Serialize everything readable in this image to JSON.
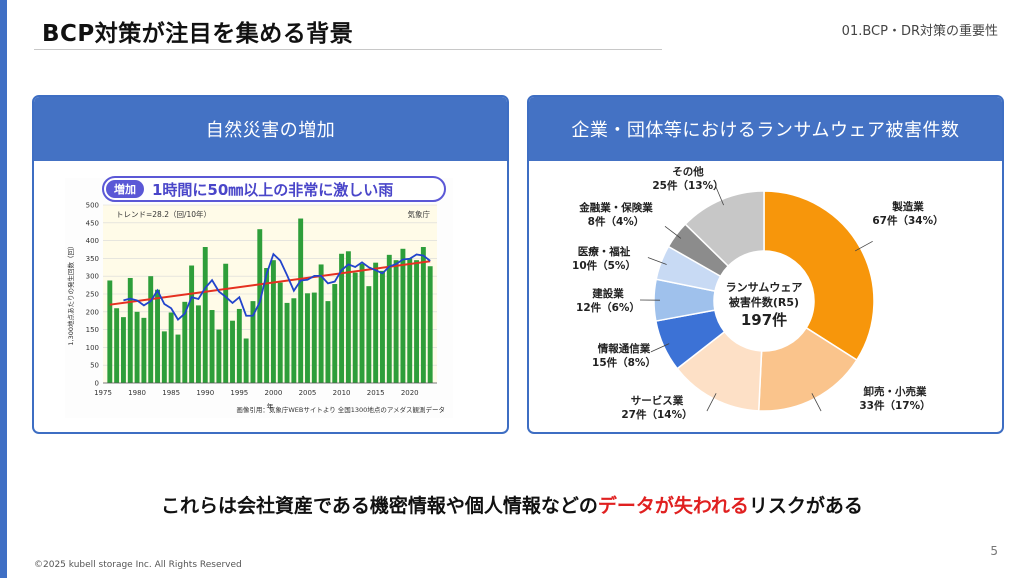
{
  "header": {
    "title": "BCP対策が注目を集める背景",
    "section": "01.BCP・DR対策の重要性"
  },
  "left_card": {
    "title": "自然災害の増加",
    "badge_tag": "増加",
    "badge_text": "1時間に50㎜以上の非常に激しい雨"
  },
  "right_card": {
    "title": "企業・団体等におけるランサムウェア被害件数",
    "center_line1": "ランサムウェア",
    "center_line2": "被害件数(R5)",
    "center_total": "197件"
  },
  "message": {
    "before": "これらは会社資産である機密情報や個人情報などの",
    "highlight": "データが失われる",
    "after": "リスクがある"
  },
  "page_number": "5",
  "footer": "©2025 kubell storage Inc. All Rights Reserved",
  "chart_data": [
    {
      "type": "bar",
      "annotation_left": "トレンド=28.2（回/10年）",
      "annotation_right": "気象庁",
      "ylabel": "1,300地点あたりの発生回数（回）",
      "xlabel": "年",
      "source_note": "画像引用：気象庁WEBサイトより 全国1300地点のアメダス観測データ",
      "ylim": [
        0,
        500
      ],
      "yticks": [
        0,
        50,
        100,
        150,
        200,
        250,
        300,
        350,
        400,
        450,
        500
      ],
      "xticks": [
        1975,
        1980,
        1985,
        1990,
        1995,
        2000,
        2005,
        2010,
        2015,
        2020
      ],
      "x": [
        1976,
        1977,
        1978,
        1979,
        1980,
        1981,
        1982,
        1983,
        1984,
        1985,
        1986,
        1987,
        1988,
        1989,
        1990,
        1991,
        1992,
        1993,
        1994,
        1995,
        1996,
        1997,
        1998,
        1999,
        2000,
        2001,
        2002,
        2003,
        2004,
        2005,
        2006,
        2007,
        2008,
        2009,
        2010,
        2011,
        2012,
        2013,
        2014,
        2015,
        2016,
        2017,
        2018,
        2019,
        2020,
        2021,
        2022,
        2023
      ],
      "values": [
        288,
        210,
        185,
        295,
        200,
        183,
        300,
        262,
        145,
        198,
        136,
        228,
        330,
        218,
        382,
        205,
        150,
        335,
        175,
        208,
        125,
        230,
        432,
        323,
        345,
        282,
        225,
        238,
        462,
        252,
        254,
        333,
        230,
        278,
        363,
        370,
        310,
        335,
        272,
        338,
        315,
        360,
        345,
        377,
        350,
        345,
        382,
        328
      ],
      "moving_average": [
        null,
        null,
        232,
        237,
        232,
        218,
        230,
        260,
        222,
        210,
        178,
        195,
        241,
        236,
        267,
        289,
        257,
        242,
        225,
        241,
        189,
        189,
        227,
        306,
        362,
        344,
        303,
        259,
        288,
        290,
        301,
        301,
        280,
        285,
        317,
        333,
        326,
        339,
        325,
        317,
        308,
        327,
        334,
        347,
        349,
        361,
        358,
        343
      ],
      "trend": [
        220,
        342
      ],
      "colors": {
        "bar": "#2e9e3a",
        "moving_average": "#2244cc",
        "trend": "#e53020",
        "plot_bg": "#fffbe8"
      }
    },
    {
      "type": "pie",
      "total": 197,
      "slices": [
        {
          "label": "製造業",
          "value": 67,
          "value_text": "67件（34%）",
          "color": "#f7960b"
        },
        {
          "label": "卸売・小売業",
          "value": 33,
          "value_text": "33件（17%）",
          "color": "#fac48c"
        },
        {
          "label": "サービス業",
          "value": 27,
          "value_text": "27件（14%）",
          "color": "#fde0c6"
        },
        {
          "label": "情報通信業",
          "value": 15,
          "value_text": "15件（8%）",
          "color": "#3c72d6"
        },
        {
          "label": "建設業",
          "value": 12,
          "value_text": "12件（6%）",
          "color": "#9fc1ec"
        },
        {
          "label": "医療・福祉",
          "value": 10,
          "value_text": "10件（5%）",
          "color": "#c8daf4"
        },
        {
          "label": "金融業・保険業",
          "value": 8,
          "value_text": "8件（4%）",
          "color": "#8c8c8c"
        },
        {
          "label": "その他",
          "value": 25,
          "value_text": "25件（13%）",
          "color": "#c7c7c7"
        }
      ]
    }
  ]
}
